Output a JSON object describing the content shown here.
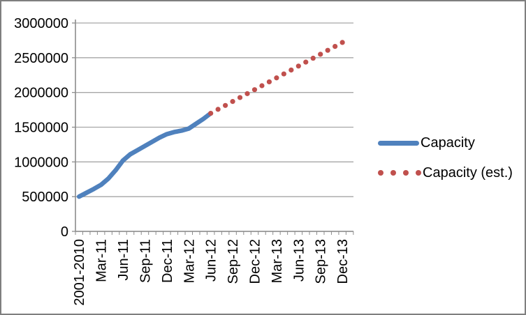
{
  "chart_data": {
    "type": "line",
    "title": "",
    "grid": true,
    "legend_position": "right",
    "categories": [
      "2001-2010",
      "Jan-11",
      "Feb-11",
      "Mar-11",
      "Apr-11",
      "May-11",
      "Jun-11",
      "Jul-11",
      "Aug-11",
      "Sep-11",
      "Oct-11",
      "Nov-11",
      "Dec-11",
      "Jan-12",
      "Feb-12",
      "Mar-12",
      "Apr-12",
      "May-12",
      "Jun-12",
      "Jul-12",
      "Aug-12",
      "Sep-12",
      "Oct-12",
      "Nov-12",
      "Dec-12",
      "Jan-13",
      "Feb-13",
      "Mar-13",
      "Apr-13",
      "May-13",
      "Jun-13",
      "Jul-13",
      "Aug-13",
      "Sep-13",
      "Oct-13",
      "Nov-13",
      "Dec-13"
    ],
    "x_axis": {
      "tick_labels": [
        "2001-2010",
        "Mar-11",
        "Jun-11",
        "Sep-11",
        "Dec-11",
        "Mar-12",
        "Jun-12",
        "Sep-12",
        "Dec-12",
        "Mar-13",
        "Jun-13",
        "Sep-13",
        "Dec-13"
      ],
      "tick_label_indices": [
        0,
        3,
        6,
        9,
        12,
        15,
        18,
        21,
        24,
        27,
        30,
        33,
        36
      ]
    },
    "y_axis": {
      "min": 0,
      "max": 3000000,
      "step": 500000,
      "tick_values": [
        0,
        500000,
        1000000,
        1500000,
        2000000,
        2500000,
        3000000
      ],
      "tick_labels": [
        "0",
        "500000",
        "1000000",
        "1500000",
        "2000000",
        "2500000",
        "3000000"
      ]
    },
    "series": [
      {
        "name": "Capacity",
        "style": "solid",
        "color": "#4F81BD",
        "values": [
          500000,
          555000,
          610000,
          670000,
          760000,
          880000,
          1020000,
          1110000,
          1170000,
          1230000,
          1290000,
          1350000,
          1400000,
          1430000,
          1450000,
          1480000,
          1550000,
          1620000,
          1700000,
          null,
          null,
          null,
          null,
          null,
          null,
          null,
          null,
          null,
          null,
          null,
          null,
          null,
          null,
          null,
          null,
          null,
          null
        ]
      },
      {
        "name": "Capacity (est.)",
        "style": "dotted",
        "color": "#C0504D",
        "values": [
          null,
          null,
          null,
          null,
          null,
          null,
          null,
          null,
          null,
          null,
          null,
          null,
          null,
          null,
          null,
          null,
          null,
          null,
          1700000,
          1757000,
          1813000,
          1870000,
          1927000,
          1983000,
          2040000,
          2097000,
          2153000,
          2210000,
          2267000,
          2323000,
          2380000,
          2437000,
          2493000,
          2550000,
          2607000,
          2663000,
          2720000
        ]
      }
    ]
  },
  "colors": {
    "capacity": "#4F81BD",
    "capacity_est": "#C0504D",
    "gridline": "#A6A6A6",
    "axis": "#8C8C8C",
    "text": "#000000",
    "border": "#7F7F7F"
  }
}
